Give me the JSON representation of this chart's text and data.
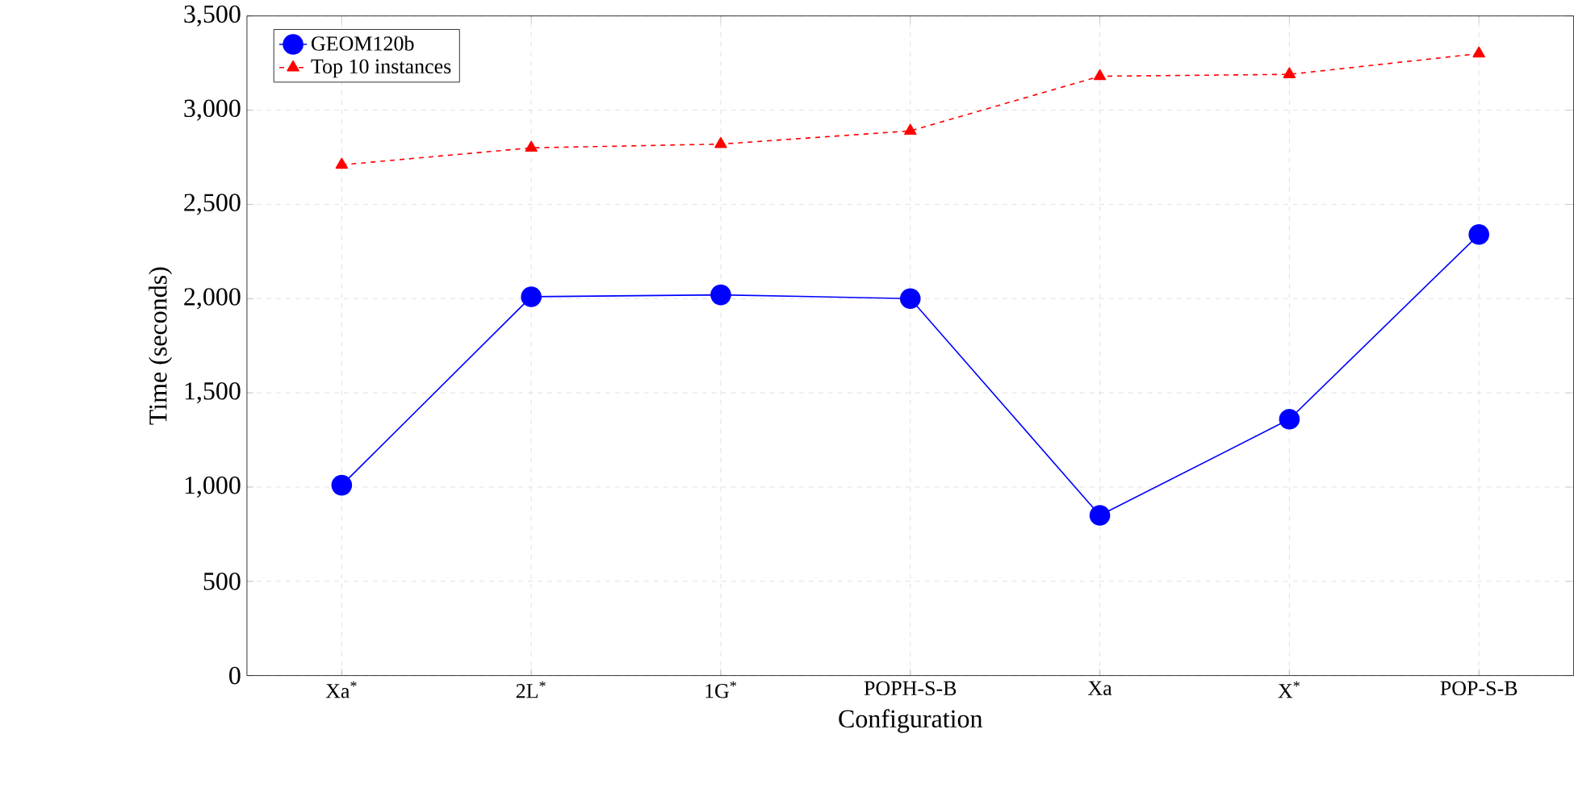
{
  "chart_data": {
    "type": "line",
    "xlabel": "Configuration",
    "ylabel": "Time (seconds)",
    "categories": [
      "Xa$^{*}$",
      "2L$^{*}$",
      "1G$^{*}$",
      "POPH-S-B",
      "Xa",
      "X$^{*}$",
      "POP-S-B"
    ],
    "series": [
      {
        "name": "GEOM120b",
        "color": "#0000ff",
        "marker": "circle",
        "line_style": "solid",
        "values": [
          1010,
          2010,
          2020,
          2000,
          850,
          1360,
          2340
        ]
      },
      {
        "name": "Top 10 instances",
        "color": "#ff0000",
        "marker": "triangle",
        "line_style": "dashed",
        "values": [
          2710,
          2800,
          2820,
          2890,
          3180,
          3190,
          3300
        ]
      }
    ],
    "ylim": [
      0,
      3500
    ],
    "yticks": [
      {
        "value": 0,
        "label": "0"
      },
      {
        "value": 500,
        "label": "500"
      },
      {
        "value": 1000,
        "label": "1,000"
      },
      {
        "value": 1500,
        "label": "1,500"
      },
      {
        "value": 2000,
        "label": "2,000"
      },
      {
        "value": 2500,
        "label": "2,500"
      },
      {
        "value": 3000,
        "label": "3,000"
      },
      {
        "value": 3500,
        "label": "3,500"
      }
    ],
    "grid": true,
    "legend": "top left"
  }
}
